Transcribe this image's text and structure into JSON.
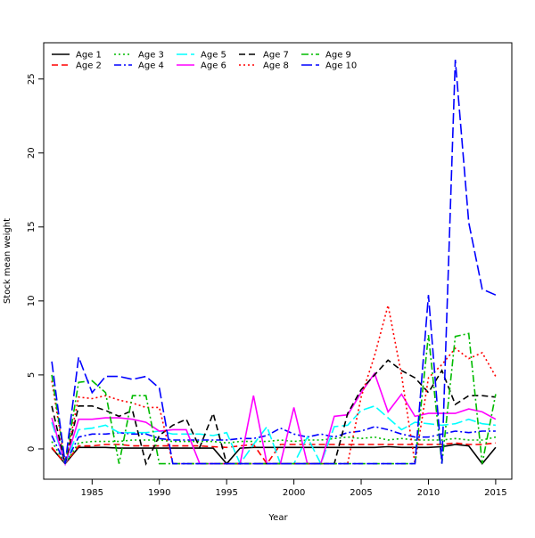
{
  "chart_data": {
    "type": "line",
    "title": "",
    "xlabel": "Year",
    "ylabel": "Stock mean weight",
    "xlim": [
      1981.4,
      2016.2
    ],
    "ylim": [
      -2.05,
      27.45
    ],
    "xticks": [
      1985,
      1990,
      1995,
      2000,
      2005,
      2010,
      2015
    ],
    "yticks": [
      0,
      5,
      10,
      15,
      20,
      25
    ],
    "grid": false,
    "legend_position": "top-left",
    "x": [
      1982,
      1983,
      1984,
      1985,
      1986,
      1987,
      1988,
      1989,
      1990,
      1991,
      1992,
      1993,
      1994,
      1995,
      1996,
      1997,
      1998,
      1999,
      2000,
      2001,
      2002,
      2003,
      2004,
      2005,
      2006,
      2007,
      2008,
      2009,
      2010,
      2011,
      2012,
      2013,
      2014,
      2015
    ],
    "series": [
      {
        "name": "Age 1",
        "color": "#000000",
        "dash": "",
        "values": [
          0.05,
          -1,
          0.1,
          0.1,
          0.1,
          0.05,
          0.05,
          0.05,
          0.05,
          0.05,
          0.05,
          0.05,
          0.05,
          -1,
          0.05,
          0.1,
          0.1,
          0.1,
          0.1,
          0.1,
          0.1,
          0.1,
          0.1,
          0.1,
          0.1,
          0.15,
          0.1,
          0.1,
          0.1,
          0.15,
          0.3,
          0.2,
          -1,
          0.1
        ]
      },
      {
        "name": "Age 2",
        "color": "#ff0000",
        "dash": "7,4",
        "values": [
          0.1,
          -1,
          0.2,
          0.2,
          0.3,
          0.3,
          0.2,
          0.2,
          0.2,
          0.2,
          0.2,
          0.2,
          0.15,
          0.1,
          0.2,
          0.3,
          -1,
          0.3,
          0.3,
          0.3,
          0.3,
          0.3,
          0.3,
          0.3,
          0.3,
          0.3,
          0.3,
          0.3,
          0.3,
          0.3,
          0.4,
          0.3,
          0.3,
          0.4
        ]
      },
      {
        "name": "Age 3",
        "color": "#00bb00",
        "dash": "2,3",
        "values": [
          0.5,
          -1,
          0.4,
          0.5,
          0.5,
          0.5,
          0.6,
          0.6,
          0.6,
          0.5,
          0.5,
          0.5,
          0.5,
          0.4,
          0.5,
          0.5,
          0.5,
          0.6,
          0.5,
          0.6,
          0.6,
          0.7,
          0.8,
          0.7,
          0.8,
          0.6,
          0.7,
          0.6,
          0.6,
          0.6,
          0.7,
          0.6,
          0.6,
          0.8
        ]
      },
      {
        "name": "Age 4",
        "color": "#0000ff",
        "dash": "8,3,2,3",
        "values": [
          0.9,
          -1,
          0.8,
          1.0,
          1.0,
          1.1,
          1.0,
          1.0,
          0.7,
          0.6,
          0.6,
          0.6,
          0.6,
          0.6,
          0.7,
          0.7,
          0.9,
          1.4,
          1.0,
          0.8,
          1.0,
          0.8,
          1.1,
          1.2,
          1.5,
          1.3,
          1.0,
          0.8,
          0.8,
          1.0,
          1.2,
          1.1,
          1.2,
          1.2
        ]
      },
      {
        "name": "Age 5",
        "color": "#00ffff",
        "dash": "12,4",
        "values": [
          1.8,
          -1,
          1.3,
          1.4,
          1.6,
          1.1,
          1.1,
          1.1,
          1.2,
          1.0,
          1.0,
          1.0,
          0.9,
          1.1,
          -1,
          0.3,
          1.5,
          -1,
          -1,
          0.8,
          -1,
          1.5,
          1.6,
          2.6,
          2.9,
          2.1,
          1.3,
          1.8,
          1.7,
          1.6,
          1.7,
          2.0,
          1.7,
          1.6
        ]
      },
      {
        "name": "Age 6",
        "color": "#ff00ff",
        "dash": "",
        "values": [
          2.1,
          -1,
          2.0,
          2.0,
          2.1,
          2.1,
          2.0,
          1.8,
          1.2,
          1.3,
          1.3,
          -1,
          -1,
          -1,
          -1,
          3.6,
          -1,
          -1,
          2.8,
          -1,
          -1,
          2.2,
          2.3,
          3.8,
          5.1,
          2.5,
          3.7,
          2.2,
          2.4,
          2.4,
          2.4,
          2.7,
          2.5,
          2.0
        ]
      },
      {
        "name": "Age 7",
        "color": "#000000",
        "dash": "7,4",
        "values": [
          2.9,
          -1,
          2.9,
          2.9,
          2.6,
          2.2,
          2.6,
          -1,
          0.9,
          1.6,
          2.0,
          0.1,
          2.4,
          -1,
          -1,
          -1,
          -1,
          -1,
          -1,
          -1,
          -1,
          -1,
          2.4,
          4.0,
          5.0,
          6.0,
          5.3,
          4.8,
          3.8,
          5.3,
          3.0,
          3.6,
          3.6,
          3.5
        ]
      },
      {
        "name": "Age 8",
        "color": "#ff0000",
        "dash": "2,3",
        "values": [
          4.6,
          -1,
          3.5,
          3.4,
          3.6,
          3.3,
          3.1,
          2.8,
          2.8,
          -1,
          -1,
          -1,
          -1,
          -1,
          -1,
          -1,
          -1,
          -1,
          -1,
          -1,
          -1,
          -1,
          -1,
          3.5,
          6.3,
          9.7,
          5.0,
          -1,
          4.8,
          5.7,
          6.8,
          6.1,
          6.5,
          4.9
        ]
      },
      {
        "name": "Age 9",
        "color": "#00bb00",
        "dash": "8,3,2,3",
        "values": [
          5.0,
          -1,
          4.5,
          4.6,
          3.8,
          -1,
          3.6,
          3.6,
          -1,
          -1,
          -1,
          -1,
          -1,
          -1,
          -1,
          -1,
          -1,
          -1,
          -1,
          -1,
          -1,
          -1,
          -1,
          -1,
          -1,
          -1,
          -1,
          -1,
          7.7,
          -1,
          7.6,
          7.8,
          -1,
          3.7
        ]
      },
      {
        "name": "Age 10",
        "color": "#0000ff",
        "dash": "12,4",
        "values": [
          5.9,
          -1,
          6.2,
          3.8,
          4.9,
          4.9,
          4.7,
          4.9,
          4.1,
          -1,
          -1,
          -1,
          -1,
          -1,
          -1,
          -1,
          -1,
          -1,
          -1,
          -1,
          -1,
          -1,
          -1,
          -1,
          -1,
          -1,
          -1,
          -1,
          10.4,
          -1,
          26.3,
          15.3,
          10.8,
          10.4
        ]
      }
    ]
  }
}
